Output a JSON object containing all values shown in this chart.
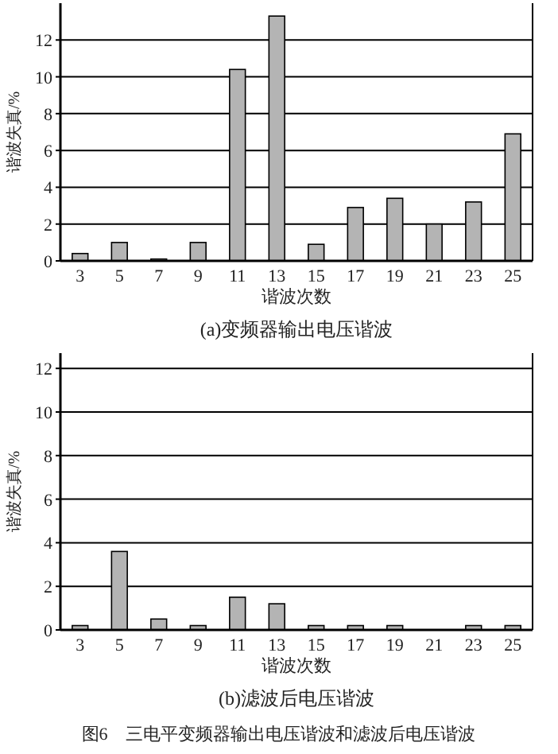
{
  "chart_data": [
    {
      "type": "bar",
      "title": "(a)变频器输出电压谐波",
      "xlabel": "谐波次数",
      "ylabel": "谐波失真/%",
      "categories": [
        "3",
        "5",
        "7",
        "9",
        "11",
        "13",
        "15",
        "17",
        "19",
        "21",
        "23",
        "25"
      ],
      "values": [
        0.4,
        1.0,
        0.1,
        1.0,
        10.4,
        13.3,
        0.9,
        2.9,
        3.4,
        2.0,
        3.2,
        6.9
      ],
      "color": "#b4b4b4",
      "ylim": [
        0,
        14
      ],
      "yticks": [
        0,
        2,
        4,
        6,
        8,
        10,
        12
      ],
      "grid": "y"
    },
    {
      "type": "bar",
      "title": "(b)滤波后电压谐波",
      "xlabel": "谐波次数",
      "ylabel": "谐波失真/%",
      "categories": [
        "3",
        "5",
        "7",
        "9",
        "11",
        "13",
        "15",
        "17",
        "19",
        "21",
        "23",
        "25"
      ],
      "values": [
        0.2,
        3.6,
        0.5,
        0.2,
        1.5,
        1.2,
        0.2,
        0.2,
        0.2,
        0,
        0.2,
        0.2
      ],
      "color": "#b4b4b4",
      "ylim": [
        0,
        12.7
      ],
      "yticks": [
        0,
        2,
        4,
        6,
        8,
        10,
        12
      ],
      "grid": "y",
      "annotations": [
        "图6　三电平变频器输出电压谐波和滤波后电压谐波"
      ]
    }
  ]
}
